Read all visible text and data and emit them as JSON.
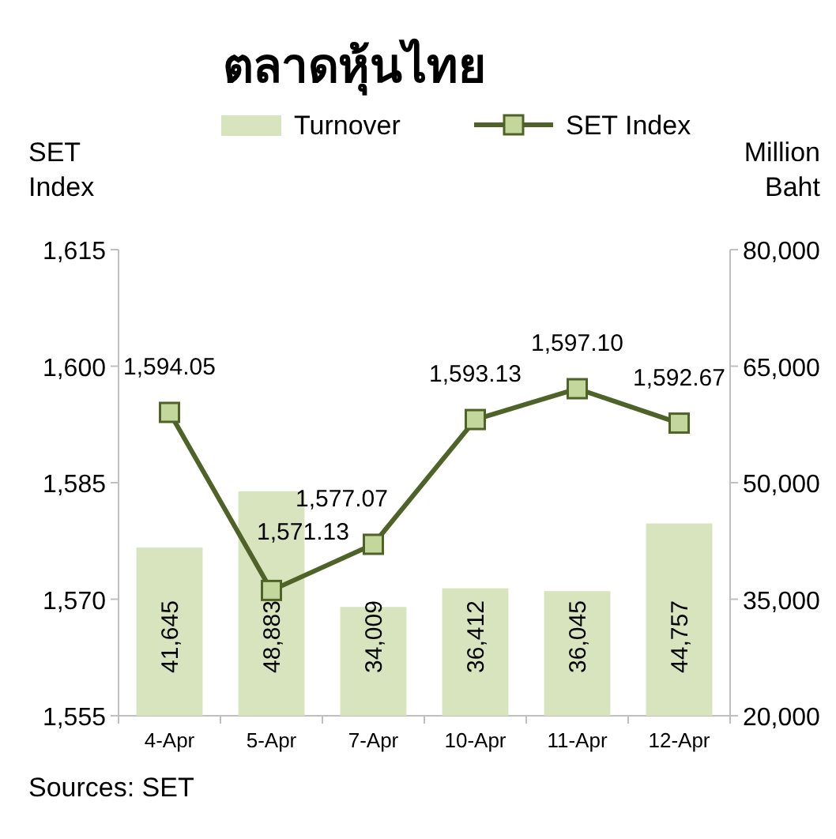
{
  "chart_data": {
    "type": "bar",
    "title": "ตลาดหุ้นไทย",
    "ylabel": "SET\nIndex",
    "y2label": "Million\nBaht",
    "categories": [
      "4-Apr",
      "5-Apr",
      "7-Apr",
      "10-Apr",
      "11-Apr",
      "12-Apr"
    ],
    "series": [
      {
        "name": "Turnover",
        "axis": "y2",
        "color": "#d7e4bd",
        "values": [
          41645,
          48883,
          34009,
          36412,
          36045,
          44757
        ],
        "value_labels": [
          "41,645",
          "48,883",
          "34,009",
          "36,412",
          "36,045",
          "44,757"
        ]
      },
      {
        "name": "SET Index",
        "type": "line",
        "axis": "y",
        "color": "#4f6228",
        "marker": "square",
        "values": [
          1594.05,
          1571.13,
          1577.07,
          1593.13,
          1597.1,
          1592.67
        ],
        "value_labels": [
          "1,594.05",
          "1,571.13",
          "1,577.07",
          "1,593.13",
          "1,597.10",
          "1,592.67"
        ]
      }
    ],
    "ylim": [
      1555,
      1615
    ],
    "yticks": [
      {
        "value": 1555,
        "label": "1,555"
      },
      {
        "value": 1570,
        "label": "1,570"
      },
      {
        "value": 1585,
        "label": "1,585"
      },
      {
        "value": 1600,
        "label": "1,600"
      },
      {
        "value": 1615,
        "label": "1,615"
      }
    ],
    "y2lim": [
      20000,
      80000
    ],
    "y2ticks": [
      {
        "value": 20000,
        "label": "20,000"
      },
      {
        "value": 35000,
        "label": "35,000"
      },
      {
        "value": 50000,
        "label": "50,000"
      },
      {
        "value": 65000,
        "label": "65,000"
      },
      {
        "value": 80000,
        "label": "80,000"
      }
    ],
    "legend": "top",
    "annotations": [
      "Sources: SET"
    ]
  }
}
